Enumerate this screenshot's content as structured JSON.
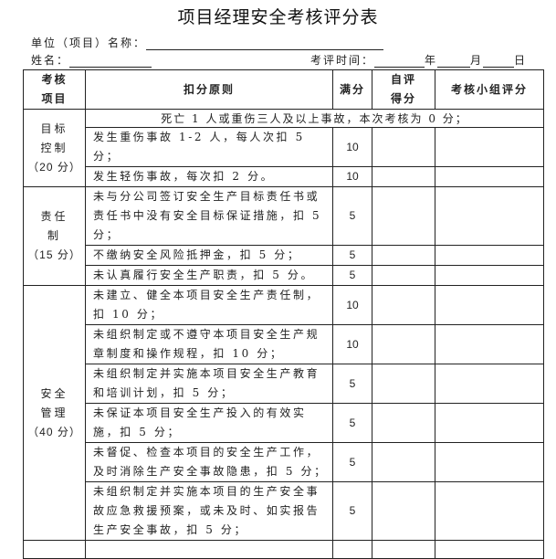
{
  "title": "项目经理安全考核评分表",
  "unit_label": "单位（项目）名称：",
  "name_label": "姓名：",
  "date": {
    "label": "考评时间：",
    "year": "年",
    "month": "月",
    "day": "日"
  },
  "headers": {
    "item": "考核项目",
    "rule": "扣分原则",
    "full": "满分",
    "self": "自评得分",
    "group": "考核小组评分"
  },
  "sections": [
    {
      "name": "目标控制",
      "points": "（20 分）",
      "note": "死亡 1 人或重伤三人及以上事故，本次考核为 0 分；",
      "rows": [
        {
          "rule": "发生重伤事故 1-2 人，每人次扣 5 分；",
          "full": "10"
        },
        {
          "rule": "发生轻伤事故，每次扣 2 分。",
          "full": "10"
        }
      ]
    },
    {
      "name": "责任制",
      "points": "（15 分）",
      "rows": [
        {
          "rule": "未与分公司签订安全生产目标责任书或责任书中没有安全目标保证措施，扣 5 分；",
          "full": "5"
        },
        {
          "rule": "不缴纳安全风险抵押金，扣 5 分；",
          "full": "5"
        },
        {
          "rule": "未认真履行安全生产职责，扣 5 分。",
          "full": "5"
        }
      ]
    },
    {
      "name": "安全管理",
      "points": "（40 分）",
      "rows": [
        {
          "rule": "未建立、健全本项目安全生产责任制，扣 10 分；",
          "full": "10"
        },
        {
          "rule": "未组织制定或不遵守本项目安全生产规章制度和操作规程，扣 10 分；",
          "full": "10"
        },
        {
          "rule": "未组织制定并实施本项目安全生产教育和培训计划，扣 5 分；",
          "full": "5"
        },
        {
          "rule": "未保证本项目安全生产投入的有效实施，扣 5 分；",
          "full": "5"
        },
        {
          "rule": "未督促、检查本项目的安全生产工作，及时消除生产安全事故隐患，扣 5 分；",
          "full": "5"
        },
        {
          "rule": "未组织制定并实施本项目的生产安全事故应急救援预案，或未及时、如实报告生产安全事故，扣 5 分；",
          "full": "5"
        }
      ]
    }
  ]
}
